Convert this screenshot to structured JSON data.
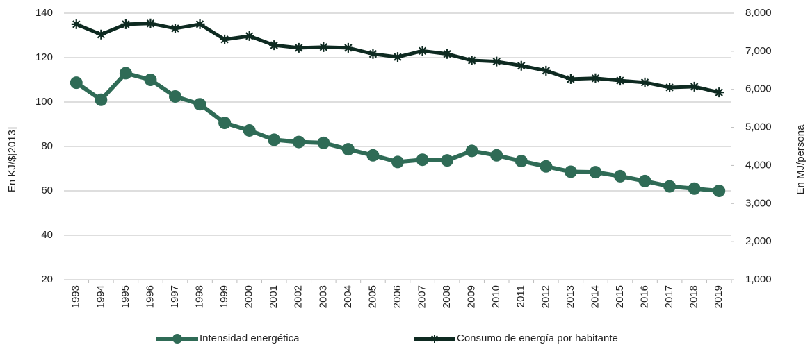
{
  "chart_data": {
    "type": "line",
    "categories": [
      "1993",
      "1994",
      "1995",
      "1996",
      "1997",
      "1998",
      "1999",
      "2000",
      "2001",
      "2002",
      "2003",
      "2004",
      "2005",
      "2006",
      "2007",
      "2008",
      "2009",
      "2010",
      "2011",
      "2012",
      "2013",
      "2014",
      "2015",
      "2016",
      "2017",
      "2018",
      "2019"
    ],
    "series": [
      {
        "name": "Intensidad energética",
        "color": "#2f6b56",
        "marker": "circle",
        "values": [
          108.7,
          101,
          113,
          110,
          102.5,
          99,
          90.6,
          87.2,
          83,
          82,
          81.6,
          78.7,
          76,
          73,
          74,
          73.7,
          78,
          76,
          73.4,
          71,
          68.6,
          68.4,
          66.6,
          64.4,
          62,
          61,
          60
        ]
      },
      {
        "name": "Consumo de energía por habitante",
        "color": "#0e2a21",
        "marker": "star",
        "axis": "y2",
        "values": [
          7710,
          7440,
          7710,
          7730,
          7600,
          7710,
          7310,
          7400,
          7160,
          7090,
          7110,
          7090,
          6930,
          6850,
          7010,
          6930,
          6760,
          6730,
          6620,
          6490,
          6270,
          6290,
          6230,
          6180,
          6050,
          6070,
          5920
        ]
      }
    ],
    "ylabel": "En KJ/$[2013]",
    "y2label": "En MJ/persona",
    "ylim": [
      20,
      140
    ],
    "yticks": [
      20,
      40,
      60,
      80,
      100,
      120,
      140
    ],
    "y2lim": [
      1000,
      8000
    ],
    "y2ticks": [
      {
        "value": 1000,
        "label": "1,000"
      },
      {
        "value": 2000,
        "label": "2,000"
      },
      {
        "value": 3000,
        "label": "3,000"
      },
      {
        "value": 4000,
        "label": "4,000"
      },
      {
        "value": 5000,
        "label": "5,000"
      },
      {
        "value": 6000,
        "label": "6,000"
      },
      {
        "value": 7000,
        "label": "7,000"
      },
      {
        "value": 8000,
        "label": "8,000"
      }
    ],
    "grid": true,
    "legend": "bottom"
  }
}
